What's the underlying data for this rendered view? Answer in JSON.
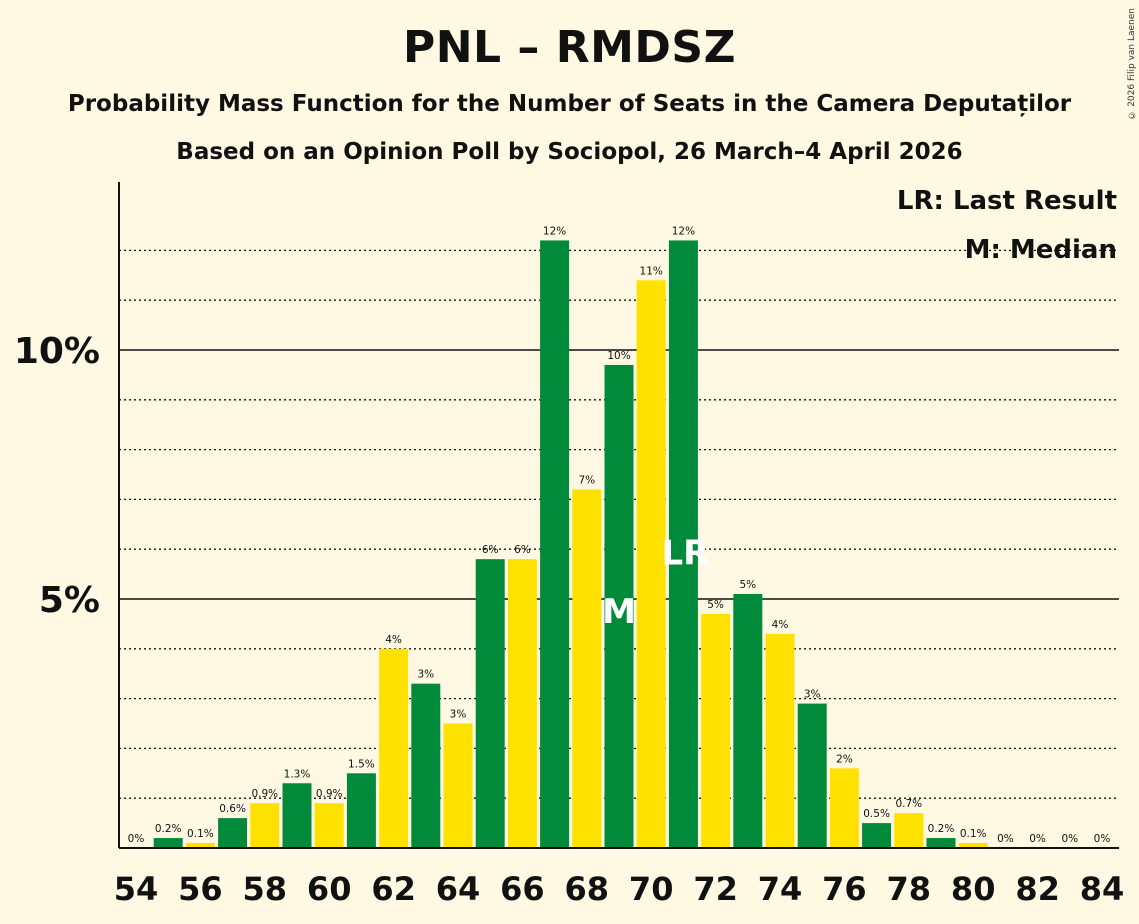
{
  "title": "PNL – RMDSZ",
  "subtitle": "Probability Mass Function for the Number of Seats in the Camera Deputaților",
  "subtitle2": "Based on an Opinion Poll by Sociopol, 26 March–4 April 2026",
  "copyright": "© 2026 Filip van Laenen",
  "colors": {
    "green": "#008a3a",
    "yellow": "#ffe100",
    "background": "#fff9e3"
  },
  "chart_data": {
    "type": "bar",
    "xlabel": "",
    "ylabel": "",
    "ylim": [
      0,
      13.4
    ],
    "xlim": [
      54,
      84
    ],
    "x": [
      54,
      55,
      56,
      57,
      58,
      59,
      60,
      61,
      62,
      63,
      64,
      65,
      66,
      67,
      68,
      69,
      70,
      71,
      72,
      73,
      74,
      75,
      76,
      77,
      78,
      79,
      80,
      81,
      82,
      83,
      84
    ],
    "values": [
      0,
      0.2,
      0.1,
      0.6,
      0.9,
      1.3,
      0.9,
      1.5,
      4.0,
      3.3,
      2.5,
      5.8,
      5.8,
      12.2,
      7.2,
      9.7,
      11.4,
      12.2,
      4.7,
      5.1,
      4.3,
      2.9,
      1.6,
      0.5,
      0.7,
      0.2,
      0.1,
      0,
      0,
      0,
      0
    ],
    "labels": [
      "0%",
      "0.2%",
      "0.1%",
      "0.6%",
      "0.9%",
      "1.3%",
      "0.9%",
      "1.5%",
      "4%",
      "3%",
      "3%",
      "6%",
      "6%",
      "12%",
      "7%",
      "10%",
      "11%",
      "12%",
      "5%",
      "5%",
      "4%",
      "3%",
      "2%",
      "0.5%",
      "0.7%",
      "0.2%",
      "0.1%",
      "0%",
      "0%",
      "0%",
      "0%"
    ],
    "bar_colors": [
      "green",
      "green",
      "yellow",
      "green",
      "yellow",
      "green",
      "yellow",
      "green",
      "yellow",
      "green",
      "yellow",
      "green",
      "yellow",
      "green",
      "yellow",
      "green",
      "yellow",
      "green",
      "yellow",
      "green",
      "yellow",
      "green",
      "yellow",
      "green",
      "yellow",
      "green",
      "yellow",
      "green",
      "yellow",
      "green",
      "yellow"
    ],
    "x_ticks": [
      "54",
      "56",
      "58",
      "60",
      "62",
      "64",
      "66",
      "68",
      "70",
      "72",
      "74",
      "76",
      "78",
      "80",
      "82",
      "84"
    ],
    "y_ticks": [
      {
        "value": 5,
        "label": "5%"
      },
      {
        "value": 10,
        "label": "10%"
      }
    ],
    "minor_gridlines": [
      1,
      2,
      3,
      4,
      6,
      7,
      8,
      9,
      11,
      12
    ],
    "median_seat": 69,
    "median_marker": "M",
    "last_result_seat": 71,
    "last_result_marker": "LR",
    "legend": [
      "LR: Last Result",
      "M: Median"
    ],
    "legend_position": "top-right"
  }
}
